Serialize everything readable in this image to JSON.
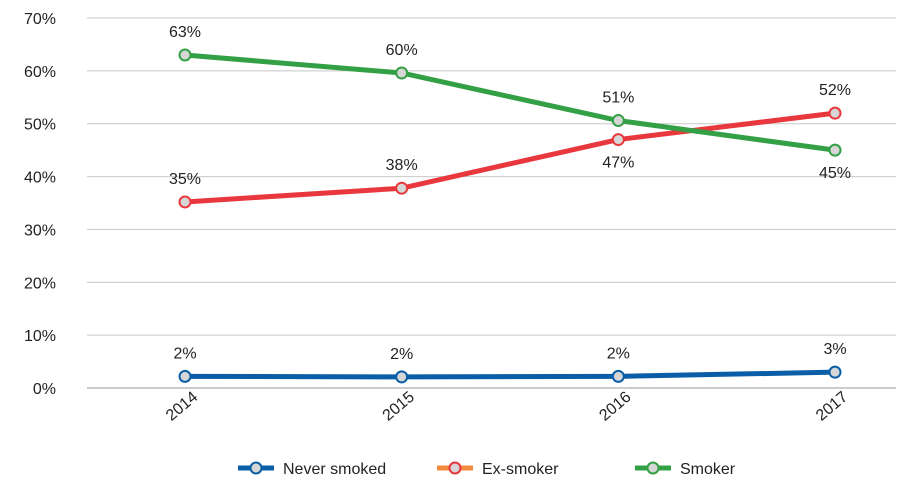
{
  "chart_data": {
    "type": "line",
    "categories": [
      "2014",
      "2015",
      "2016",
      "2017"
    ],
    "ylim": [
      0,
      70
    ],
    "y_ticks": [
      "0%",
      "10%",
      "20%",
      "30%",
      "40%",
      "50%",
      "60%",
      "70%"
    ],
    "grid": true,
    "legend_position": "bottom",
    "series": [
      {
        "name": "Never smoked",
        "color": "#0a5ea8",
        "values": [
          2.2,
          2.1,
          2.2,
          3.0
        ],
        "labels": [
          "2%",
          "2%",
          "2%",
          "3%"
        ],
        "label_position": "above"
      },
      {
        "name": "Ex-smoker",
        "color": "#e8383e",
        "legend_color": "#f58a3c",
        "values": [
          35.2,
          37.8,
          47.0,
          52.0
        ],
        "labels": [
          "35%",
          "38%",
          "47%",
          "52%"
        ],
        "label_position": [
          "above",
          "above",
          "below",
          "above"
        ]
      },
      {
        "name": "Smoker",
        "color": "#34a046",
        "values": [
          63.0,
          59.6,
          50.6,
          45.0
        ],
        "labels": [
          "63%",
          "60%",
          "51%",
          "45%"
        ],
        "label_position": [
          "above",
          "above",
          "above",
          "below"
        ]
      }
    ]
  }
}
